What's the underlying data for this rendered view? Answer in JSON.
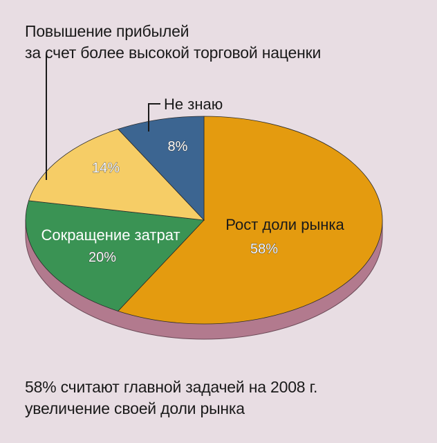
{
  "chart_data": {
    "type": "pie",
    "title": "",
    "slices": [
      {
        "label": "Рост доли рынка",
        "value": 58,
        "value_label": "58%",
        "color": "#e49b0f"
      },
      {
        "label": "Сокращение затрат",
        "value": 20,
        "value_label": "20%",
        "color": "#3a9354"
      },
      {
        "label": "Повышение прибылей за счет более высокой торговой наценки",
        "value": 14,
        "value_label": "14%",
        "color": "#f6cd66"
      },
      {
        "label": "Не знаю",
        "value": 8,
        "value_label": "8%",
        "color": "#3c6591"
      }
    ],
    "rim_color": "#b27a8e"
  },
  "callouts": {
    "top_line1": "Повышение прибылей",
    "top_line2": "за счет более высокой торговой наценки",
    "dont_know": "Не знаю"
  },
  "labels": {
    "market_share": "Рост доли рынка",
    "cost_cut": "Сокращение затрат"
  },
  "caption": {
    "line1": "58% считают главной задачей на 2008 г.",
    "line2": "увеличение своей доли рынка"
  }
}
